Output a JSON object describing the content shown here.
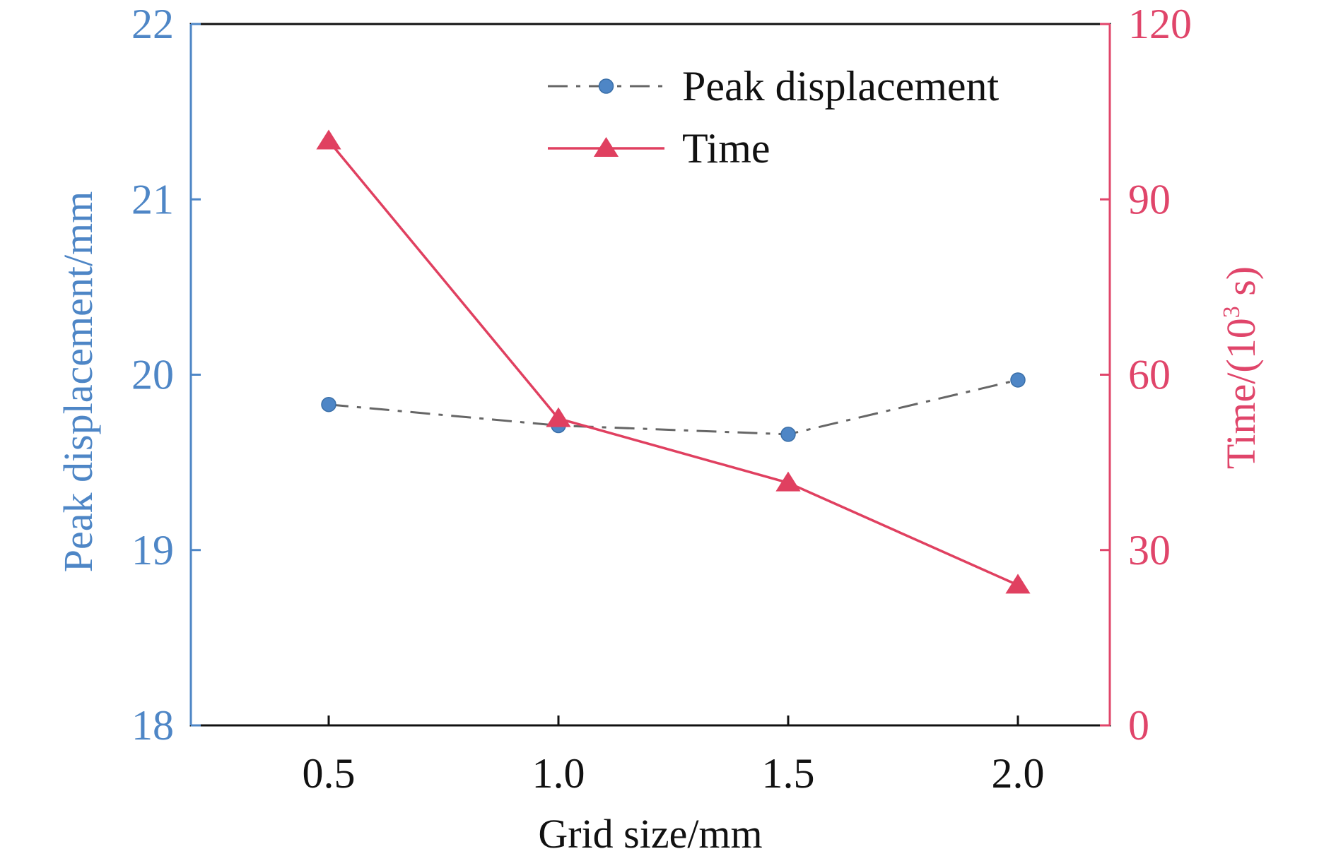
{
  "chart_data": {
    "type": "line",
    "x": [
      0.5,
      1.0,
      1.5,
      2.0
    ],
    "xlim": [
      0.2,
      2.2
    ],
    "xticks": [
      0.5,
      1.0,
      1.5,
      2.0
    ],
    "xtick_labels": [
      "0.5",
      "1.0",
      "1.5",
      "2.0"
    ],
    "xlabel": "Grid size/mm",
    "y_left": {
      "label": "Peak displacement/mm",
      "lim": [
        18,
        22
      ],
      "ticks": [
        18,
        19,
        20,
        21,
        22
      ],
      "tick_labels": [
        "18",
        "19",
        "20",
        "21",
        "22"
      ],
      "color": "#4e86c6"
    },
    "y_right": {
      "label_main": "Time/(10",
      "label_sup": "3",
      "label_tail": " s)",
      "lim": [
        0,
        120
      ],
      "ticks": [
        0,
        30,
        60,
        90,
        120
      ],
      "tick_labels": [
        "0",
        "30",
        "60",
        "90",
        "120"
      ],
      "color": "#e0456a"
    },
    "series": [
      {
        "name": "Peak displacement",
        "axis": "left",
        "values": [
          19.83,
          19.71,
          19.66,
          19.97
        ],
        "color": "#4e86c6",
        "line_color": "#666666",
        "line_style": "dash-dot",
        "marker": "circle"
      },
      {
        "name": "Time",
        "axis": "right",
        "values": [
          100,
          52.5,
          41.5,
          24
        ],
        "color": "#e04060",
        "line_style": "solid",
        "marker": "triangle"
      }
    ],
    "legend_position": "top-right",
    "grid": false
  }
}
